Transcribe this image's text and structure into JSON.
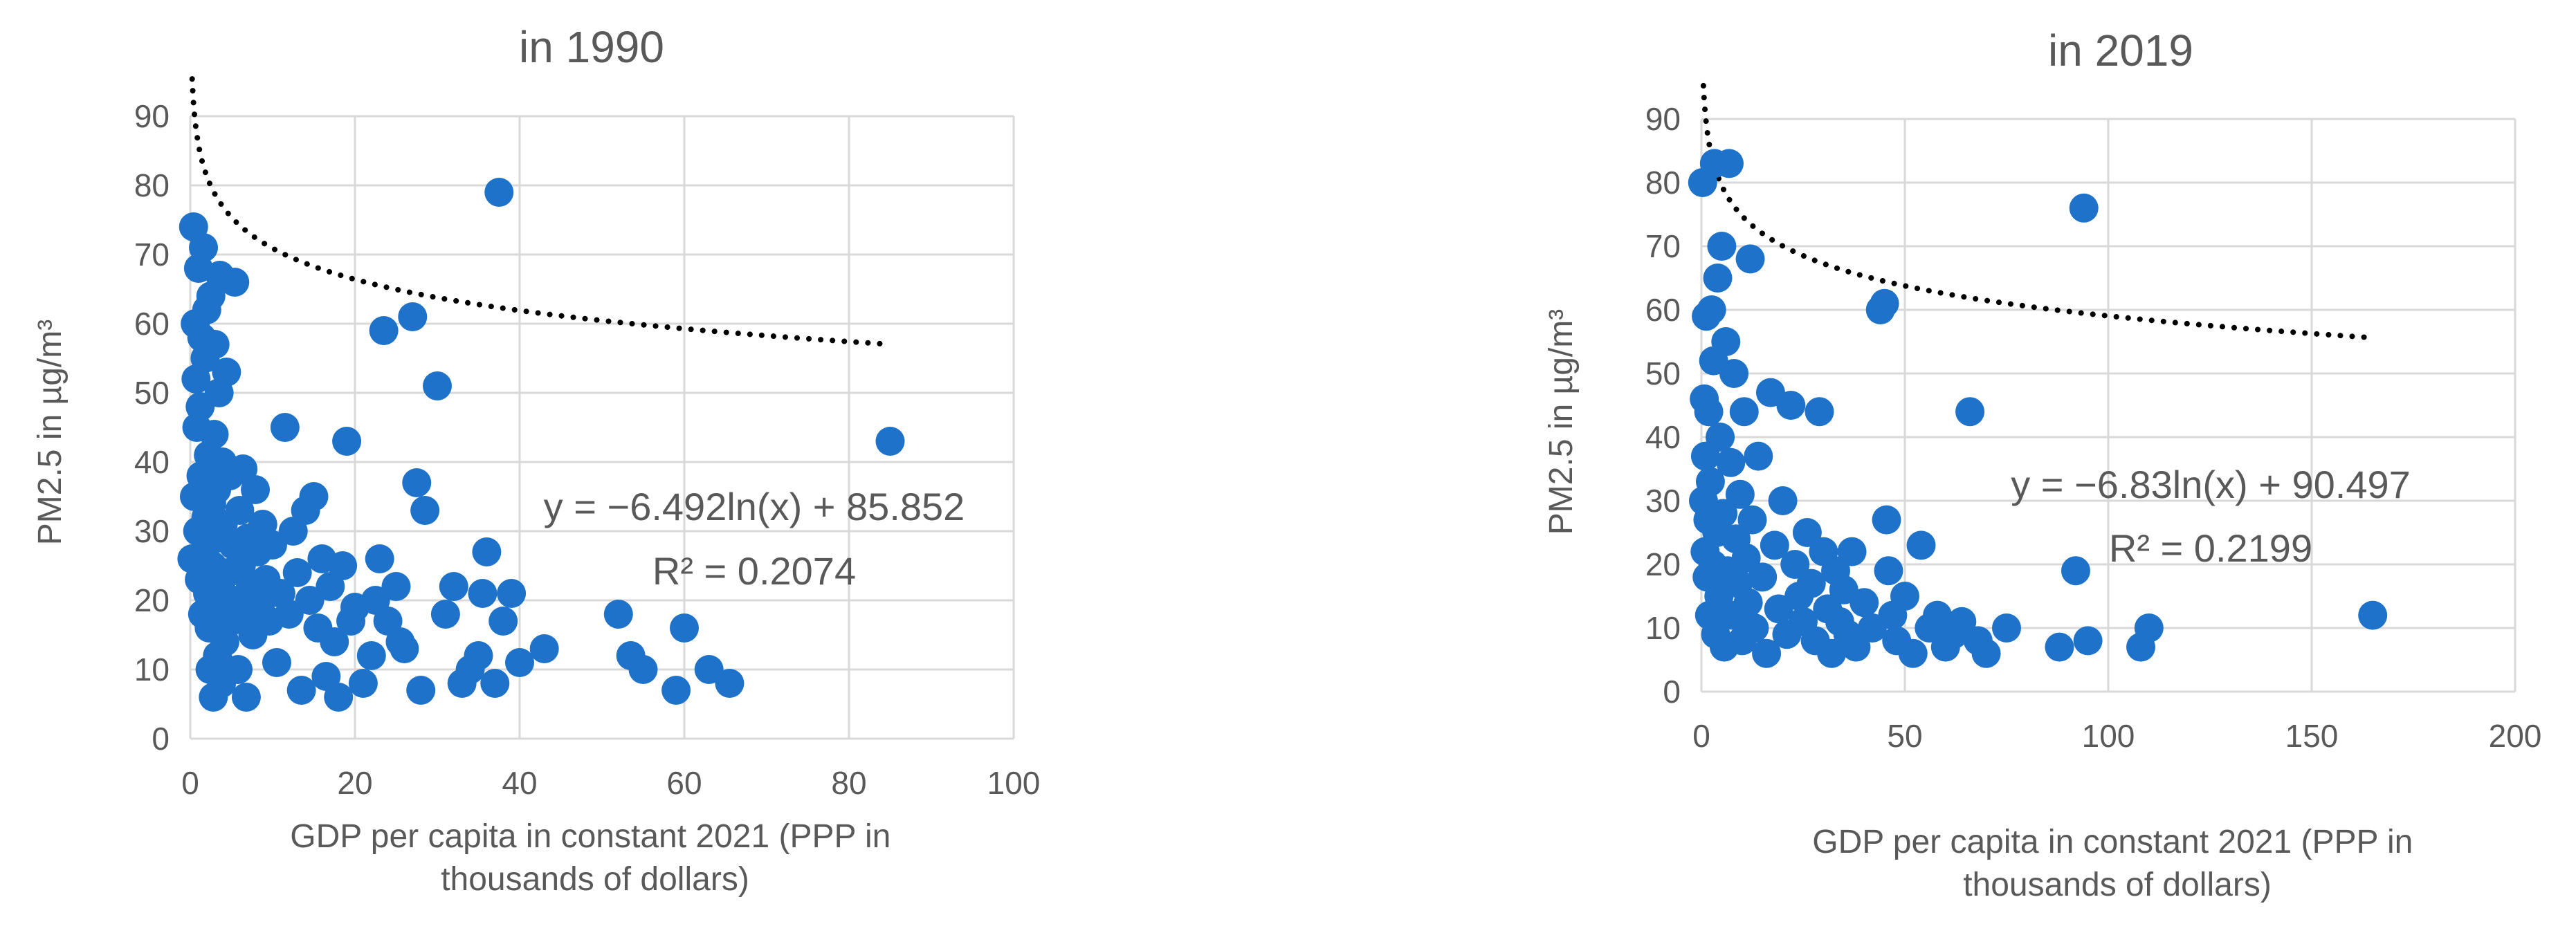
{
  "chart_data": [
    {
      "type": "scatter",
      "title": "in 1990",
      "xlabel_lines": [
        "GDP per capita in constant 2021 (PPP in",
        "thousands of dollars)"
      ],
      "ylabel": "PM2.5 in µg/m³",
      "xlim": [
        0,
        100
      ],
      "ylim": [
        0,
        90
      ],
      "x_ticks": [
        0,
        20,
        40,
        60,
        80,
        100
      ],
      "y_ticks": [
        0,
        10,
        20,
        30,
        40,
        50,
        60,
        70,
        80,
        90
      ],
      "grid": true,
      "point_color": "#1f72c9",
      "trendline": {
        "type": "log",
        "a": -6.492,
        "b": 85.852,
        "x_range": [
          0.23,
          85
        ],
        "color": "#000000",
        "style": "dotted"
      },
      "equation": "y = −6.492ln(x) + 85.852",
      "r_squared": "R² = 0.2074",
      "points": [
        [
          0.2,
          26
        ],
        [
          0.4,
          74
        ],
        [
          0.5,
          35
        ],
        [
          0.6,
          60
        ],
        [
          0.7,
          52
        ],
        [
          0.8,
          45
        ],
        [
          0.9,
          30
        ],
        [
          1.0,
          68
        ],
        [
          1.1,
          23
        ],
        [
          1.2,
          48
        ],
        [
          1.3,
          38
        ],
        [
          1.4,
          58
        ],
        [
          1.5,
          18
        ],
        [
          1.6,
          71
        ],
        [
          1.7,
          27
        ],
        [
          1.8,
          55
        ],
        [
          1.9,
          32
        ],
        [
          2.0,
          62
        ],
        [
          2.1,
          21
        ],
        [
          2.2,
          41
        ],
        [
          2.3,
          16
        ],
        [
          2.4,
          10
        ],
        [
          2.5,
          64
        ],
        [
          2.6,
          34
        ],
        [
          2.7,
          25
        ],
        [
          2.8,
          6
        ],
        [
          2.9,
          44
        ],
        [
          3.0,
          57
        ],
        [
          3.1,
          19
        ],
        [
          3.2,
          36
        ],
        [
          3.3,
          12
        ],
        [
          3.4,
          29
        ],
        [
          3.5,
          50
        ],
        [
          3.6,
          67
        ],
        [
          3.7,
          22
        ],
        [
          3.8,
          8
        ],
        [
          3.9,
          40
        ],
        [
          4.0,
          31
        ],
        [
          4.2,
          14
        ],
        [
          4.4,
          53
        ],
        [
          4.6,
          24
        ],
        [
          4.8,
          38
        ],
        [
          5.0,
          17
        ],
        [
          5.2,
          28
        ],
        [
          5.4,
          66
        ],
        [
          5.6,
          20
        ],
        [
          5.8,
          10
        ],
        [
          6.0,
          33
        ],
        [
          6.2,
          25
        ],
        [
          6.4,
          39
        ],
        [
          6.6,
          18
        ],
        [
          6.8,
          6
        ],
        [
          7.0,
          29
        ],
        [
          7.3,
          22
        ],
        [
          7.6,
          15
        ],
        [
          7.9,
          36
        ],
        [
          8.2,
          27
        ],
        [
          8.5,
          19
        ],
        [
          8.8,
          31
        ],
        [
          9.2,
          23
        ],
        [
          9.6,
          17
        ],
        [
          10.0,
          28
        ],
        [
          10.5,
          11
        ],
        [
          11.0,
          21
        ],
        [
          11.5,
          45
        ],
        [
          12.0,
          18
        ],
        [
          12.5,
          30
        ],
        [
          13.0,
          24
        ],
        [
          13.5,
          7
        ],
        [
          14.0,
          33
        ],
        [
          14.5,
          20
        ],
        [
          15.0,
          35
        ],
        [
          15.5,
          16
        ],
        [
          16.0,
          26
        ],
        [
          16.5,
          9
        ],
        [
          17.0,
          22
        ],
        [
          17.5,
          14
        ],
        [
          18.0,
          6
        ],
        [
          18.5,
          25
        ],
        [
          19.0,
          43
        ],
        [
          19.5,
          17
        ],
        [
          20.0,
          19
        ],
        [
          21.0,
          8
        ],
        [
          22.0,
          12
        ],
        [
          22.5,
          20
        ],
        [
          23.0,
          26
        ],
        [
          23.5,
          59
        ],
        [
          24.0,
          17
        ],
        [
          25.0,
          22
        ],
        [
          25.5,
          14
        ],
        [
          26.0,
          13
        ],
        [
          27.0,
          61
        ],
        [
          27.5,
          37
        ],
        [
          28.0,
          7
        ],
        [
          28.5,
          33
        ],
        [
          30.0,
          51
        ],
        [
          31.0,
          18
        ],
        [
          32.0,
          22
        ],
        [
          33.0,
          8
        ],
        [
          34.0,
          10
        ],
        [
          35.0,
          12
        ],
        [
          35.5,
          21
        ],
        [
          36.0,
          27
        ],
        [
          37.0,
          8
        ],
        [
          37.5,
          79
        ],
        [
          38.0,
          17
        ],
        [
          39.0,
          21
        ],
        [
          40.0,
          11
        ],
        [
          43.0,
          13
        ],
        [
          52.0,
          18
        ],
        [
          53.5,
          12
        ],
        [
          55.0,
          10
        ],
        [
          59.0,
          7
        ],
        [
          60.0,
          16
        ],
        [
          63.0,
          10
        ],
        [
          65.5,
          8
        ],
        [
          85.0,
          43
        ]
      ]
    },
    {
      "type": "scatter",
      "title": "in 2019",
      "xlabel_lines": [
        "GDP per capita in constant 2021 (PPP in",
        "thousands of dollars)"
      ],
      "ylabel": "PM2.5 in µg/m³",
      "xlim": [
        0,
        200
      ],
      "ylim": [
        0,
        90
      ],
      "x_ticks": [
        0,
        50,
        100,
        150,
        200
      ],
      "y_ticks": [
        0,
        10,
        20,
        30,
        40,
        50,
        60,
        70,
        80,
        90
      ],
      "grid": true,
      "point_color": "#1f72c9",
      "trendline": {
        "type": "log",
        "a": -6.83,
        "b": 90.497,
        "x_range": [
          0.5,
          163
        ],
        "color": "#000000",
        "style": "dotted"
      },
      "equation": "y = −6.83ln(x) + 90.497",
      "r_squared": "R² = 0.2199",
      "points": [
        [
          0.3,
          80
        ],
        [
          0.5,
          30
        ],
        [
          0.7,
          46
        ],
        [
          0.9,
          22
        ],
        [
          1.0,
          37
        ],
        [
          1.2,
          59
        ],
        [
          1.4,
          18
        ],
        [
          1.6,
          27
        ],
        [
          1.8,
          44
        ],
        [
          2.0,
          12
        ],
        [
          2.2,
          33
        ],
        [
          2.5,
          60
        ],
        [
          2.8,
          20
        ],
        [
          3.0,
          52
        ],
        [
          3.2,
          83
        ],
        [
          3.5,
          9
        ],
        [
          3.8,
          25
        ],
        [
          4.0,
          65
        ],
        [
          4.3,
          15
        ],
        [
          4.6,
          40
        ],
        [
          5.0,
          70
        ],
        [
          5.3,
          28
        ],
        [
          5.6,
          7
        ],
        [
          6.0,
          55
        ],
        [
          6.4,
          19
        ],
        [
          6.8,
          83
        ],
        [
          7.2,
          36
        ],
        [
          7.6,
          12
        ],
        [
          8.0,
          50
        ],
        [
          8.5,
          24
        ],
        [
          9.0,
          17
        ],
        [
          9.5,
          31
        ],
        [
          10.0,
          8
        ],
        [
          10.5,
          44
        ],
        [
          11.0,
          21
        ],
        [
          11.5,
          14
        ],
        [
          12.0,
          68
        ],
        [
          12.5,
          27
        ],
        [
          13.0,
          10
        ],
        [
          14.0,
          37
        ],
        [
          15.0,
          18
        ],
        [
          16.0,
          6
        ],
        [
          17.0,
          47
        ],
        [
          18.0,
          23
        ],
        [
          19.0,
          13
        ],
        [
          20.0,
          30
        ],
        [
          21.0,
          9
        ],
        [
          22.0,
          45
        ],
        [
          23.0,
          20
        ],
        [
          24.0,
          15
        ],
        [
          25.0,
          11
        ],
        [
          26.0,
          25
        ],
        [
          27.0,
          17
        ],
        [
          28.0,
          8
        ],
        [
          29.0,
          44
        ],
        [
          30.0,
          22
        ],
        [
          31.0,
          13
        ],
        [
          32.0,
          6
        ],
        [
          33.0,
          19
        ],
        [
          34.0,
          11
        ],
        [
          35.0,
          16
        ],
        [
          36.0,
          9
        ],
        [
          37.0,
          22
        ],
        [
          38.0,
          7
        ],
        [
          40.0,
          14
        ],
        [
          42.0,
          10
        ],
        [
          44.0,
          60
        ],
        [
          45.0,
          61
        ],
        [
          45.5,
          27
        ],
        [
          46.0,
          19
        ],
        [
          47.0,
          12
        ],
        [
          48.0,
          8
        ],
        [
          50.0,
          15
        ],
        [
          52.0,
          6
        ],
        [
          54.0,
          23
        ],
        [
          56.0,
          10
        ],
        [
          58.0,
          12
        ],
        [
          60.0,
          7
        ],
        [
          62.0,
          9
        ],
        [
          64.0,
          11
        ],
        [
          66.0,
          44
        ],
        [
          68.0,
          8
        ],
        [
          70.0,
          6
        ],
        [
          75.0,
          10
        ],
        [
          88.0,
          7
        ],
        [
          92.0,
          19
        ],
        [
          94.0,
          76
        ],
        [
          95.0,
          8
        ],
        [
          108.0,
          7
        ],
        [
          110.0,
          10
        ],
        [
          165.0,
          12
        ]
      ]
    }
  ]
}
